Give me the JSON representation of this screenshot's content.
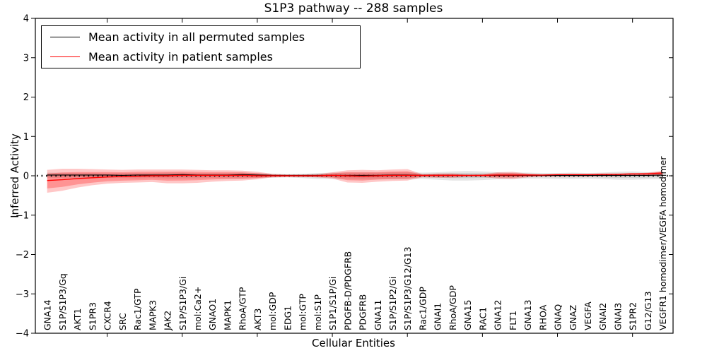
{
  "title": "S1P3 pathway -- 288 samples",
  "axes": {
    "xlabel": "Cellular Entities",
    "ylabel": "Inferred Activity",
    "yticklabels": [
      "4",
      "3",
      "2",
      "1",
      "0",
      "−1",
      "−2",
      "−3",
      "−4"
    ]
  },
  "legend": {
    "entries": [
      {
        "label": "Mean activity in all permuted samples",
        "color": "#000000"
      },
      {
        "label": "Mean activity in patient samples",
        "color": "#ff0000"
      }
    ]
  },
  "colors": {
    "permuted_line": "#000000",
    "patient_line": "#ff0000",
    "permuted_band": "#000000",
    "patient_band": "#ff0000",
    "axis": "#000000"
  },
  "chart_data": {
    "type": "line",
    "title": "S1P3 pathway -- 288 samples",
    "xlabel": "Cellular Entities",
    "ylabel": "Inferred Activity",
    "ylim": [
      -4,
      4
    ],
    "yticks": [
      4,
      3,
      2,
      1,
      0,
      -1,
      -2,
      -3,
      -4
    ],
    "grid": false,
    "legend_position": "upper left",
    "zero_line_dotted": true,
    "frame_tick_category_indices": [
      4,
      9,
      14,
      19,
      24,
      29,
      34,
      39
    ],
    "band_inner_fraction_patient": 0.65,
    "band_inner_fraction_permuted": 0.55,
    "categories": [
      "GNA14",
      "S1P/S1P3/Gq",
      "AKT1",
      "S1PR3",
      "CXCR4",
      "SRC",
      "Rac1/GTP",
      "MAPK3",
      "JAK2",
      "S1P/S1P3/Gi",
      "mol:Ca2+",
      "GNAO1",
      "MAPK1",
      "RhoA/GTP",
      "AKT3",
      "mol:GDP",
      "EDG1",
      "mol:GTP",
      "mol:S1P",
      "S1P1/S1P/Gi",
      "PDGFB-D/PDGFRB",
      "PDGFRB",
      "GNA11",
      "S1P/S1P2/Gi",
      "S1P/S1P3/G12/G13",
      "Rac1/GDP",
      "GNAI1",
      "RhoA/GDP",
      "GNA15",
      "RAC1",
      "GNA12",
      "FLT1",
      "GNA13",
      "RHOA",
      "GNAQ",
      "GNAZ",
      "VEGFA",
      "GNAI2",
      "GNAI3",
      "S1PR2",
      "G12/G13",
      "VEGFR1 homodimer/VEGFA homodimer"
    ],
    "series": [
      {
        "name": "Mean activity in all permuted samples",
        "color": "#000000",
        "values": [
          0.02,
          0.02,
          0.02,
          0.02,
          0.02,
          0.01,
          0.02,
          0.02,
          0.02,
          0.03,
          0.02,
          0.02,
          0.02,
          0.03,
          0.02,
          0.01,
          0.01,
          0.01,
          0.01,
          0.01,
          0.01,
          0.01,
          0.01,
          0.02,
          0.02,
          0.01,
          0.01,
          0.01,
          0.01,
          0.01,
          0.01,
          0.01,
          0.01,
          0.01,
          0.01,
          0.01,
          0.01,
          0.01,
          0.01,
          0.01,
          0.01,
          0.02
        ]
      },
      {
        "name": "Mean activity in patient samples",
        "color": "#ff0000",
        "values": [
          -0.12,
          -0.1,
          -0.07,
          -0.05,
          -0.03,
          -0.02,
          -0.01,
          0.0,
          0.0,
          0.01,
          0.01,
          0.01,
          0.01,
          0.01,
          0.0,
          0.0,
          0.0,
          0.0,
          0.0,
          0.01,
          0.0,
          -0.01,
          0.0,
          0.01,
          0.01,
          0.01,
          0.01,
          0.01,
          0.01,
          0.01,
          0.02,
          0.02,
          0.02,
          0.02,
          0.03,
          0.03,
          0.03,
          0.04,
          0.04,
          0.05,
          0.05,
          0.07
        ]
      }
    ],
    "bands": [
      {
        "name": "permuted-activity-range",
        "series": "Mean activity in all permuted samples",
        "color": "#000000",
        "upper": [
          0.08,
          0.08,
          0.07,
          0.07,
          0.06,
          0.07,
          0.07,
          0.07,
          0.08,
          0.08,
          0.07,
          0.07,
          0.07,
          0.08,
          0.07,
          0.05,
          0.04,
          0.05,
          0.07,
          0.08,
          0.08,
          0.08,
          0.08,
          0.09,
          0.09,
          0.08,
          0.09,
          0.11,
          0.12,
          0.11,
          0.09,
          0.08,
          0.08,
          0.07,
          0.07,
          0.08,
          0.07,
          0.08,
          0.1,
          0.11,
          0.09,
          0.1
        ],
        "lower": [
          -0.05,
          -0.06,
          -0.06,
          -0.07,
          -0.06,
          -0.06,
          -0.07,
          -0.06,
          -0.07,
          -0.07,
          -0.07,
          -0.06,
          -0.07,
          -0.07,
          -0.06,
          -0.05,
          -0.04,
          -0.06,
          -0.08,
          -0.08,
          -0.08,
          -0.09,
          -0.08,
          -0.09,
          -0.09,
          -0.08,
          -0.1,
          -0.12,
          -0.12,
          -0.11,
          -0.09,
          -0.08,
          -0.07,
          -0.07,
          -0.08,
          -0.08,
          -0.07,
          -0.08,
          -0.1,
          -0.1,
          -0.09,
          -0.08
        ]
      },
      {
        "name": "patient-activity-range",
        "series": "Mean activity in patient samples",
        "color": "#ff0000",
        "upper": [
          0.15,
          0.18,
          0.18,
          0.17,
          0.16,
          0.15,
          0.16,
          0.16,
          0.16,
          0.16,
          0.15,
          0.14,
          0.14,
          0.13,
          0.1,
          0.05,
          0.03,
          0.03,
          0.04,
          0.09,
          0.14,
          0.15,
          0.14,
          0.16,
          0.17,
          0.04,
          0.06,
          0.06,
          0.03,
          0.04,
          0.09,
          0.1,
          0.06,
          0.03,
          0.03,
          0.04,
          0.04,
          0.05,
          0.05,
          0.06,
          0.08,
          0.12
        ],
        "lower": [
          -0.43,
          -0.38,
          -0.3,
          -0.24,
          -0.2,
          -0.18,
          -0.17,
          -0.16,
          -0.19,
          -0.19,
          -0.18,
          -0.15,
          -0.13,
          -0.12,
          -0.09,
          -0.04,
          -0.03,
          -0.03,
          -0.04,
          -0.07,
          -0.17,
          -0.18,
          -0.15,
          -0.13,
          -0.12,
          -0.04,
          -0.05,
          -0.05,
          -0.03,
          -0.03,
          -0.07,
          -0.08,
          -0.04,
          -0.02,
          -0.02,
          -0.02,
          -0.02,
          -0.01,
          -0.01,
          0.0,
          0.01,
          0.0
        ]
      }
    ]
  }
}
